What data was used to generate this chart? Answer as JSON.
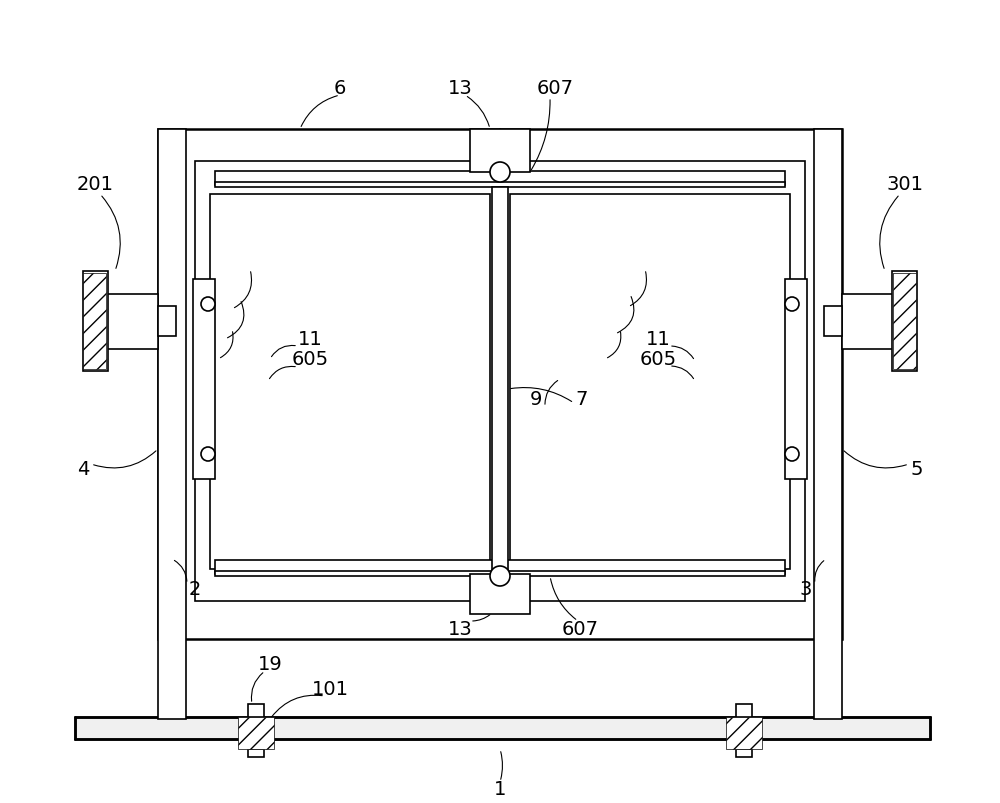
{
  "bg_color": "#ffffff",
  "line_color": "#000000",
  "fig_width": 10.0,
  "fig_height": 8.04,
  "dpi": 100
}
